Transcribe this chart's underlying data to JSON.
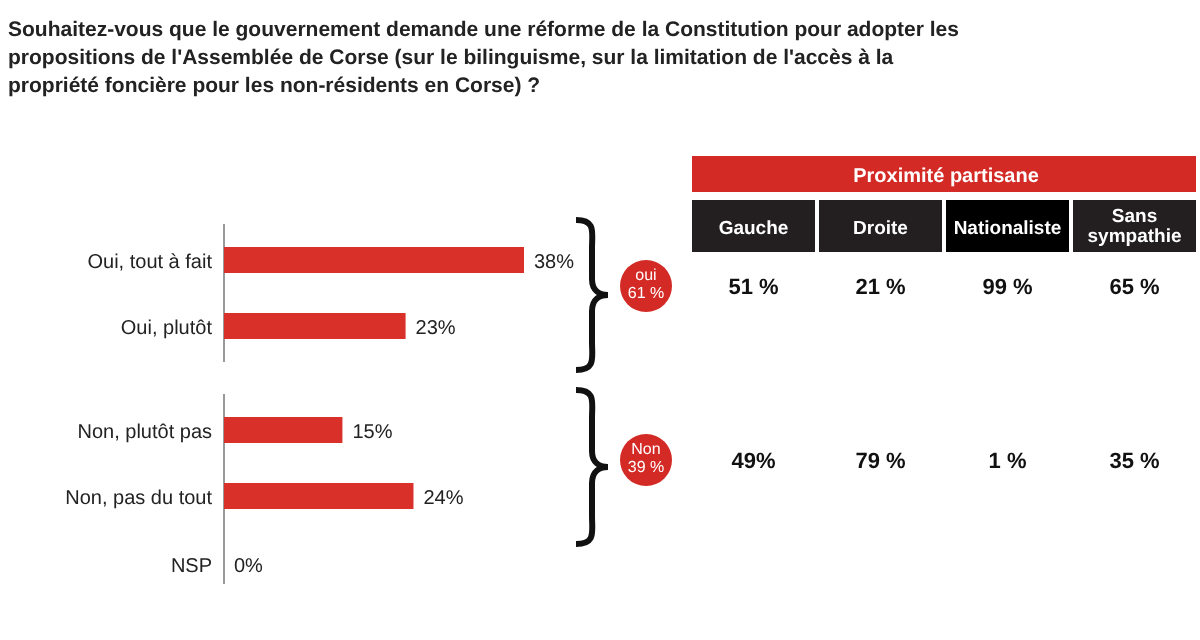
{
  "chart_data": [
    {
      "type": "bar",
      "orientation": "horizontal",
      "title": "Souhaitez-vous que le gouvernement demande une réforme de la Constitution pour adopter les propositions de l'Assemblée de Corse (sur le bilinguisme, sur la limitation de l'accès à la propriété foncière pour les non-résidents en Corse) ?",
      "categories": [
        "Oui, tout à fait",
        "Oui, plutôt",
        "Non, plutôt pas",
        "Non, pas du tout",
        "NSP"
      ],
      "values": [
        38,
        23,
        15,
        24,
        0
      ],
      "color": "#d9302a",
      "value_labels": [
        "38%",
        "23%",
        "15%",
        "24%",
        "0%"
      ]
    },
    {
      "type": "other",
      "title": "Proximité partisane",
      "categories": [
        "Gauche",
        "Droite",
        "Nationaliste",
        "Sans sympathie"
      ],
      "y_categories": [
        "oui 61 %",
        "Non 39 %"
      ],
      "cell_labels": [
        [
          "51 %",
          "21 %",
          "99 %",
          "65 %"
        ],
        [
          "49%",
          "79 %",
          "1 %",
          "35 %"
        ]
      ]
    }
  ]
}
